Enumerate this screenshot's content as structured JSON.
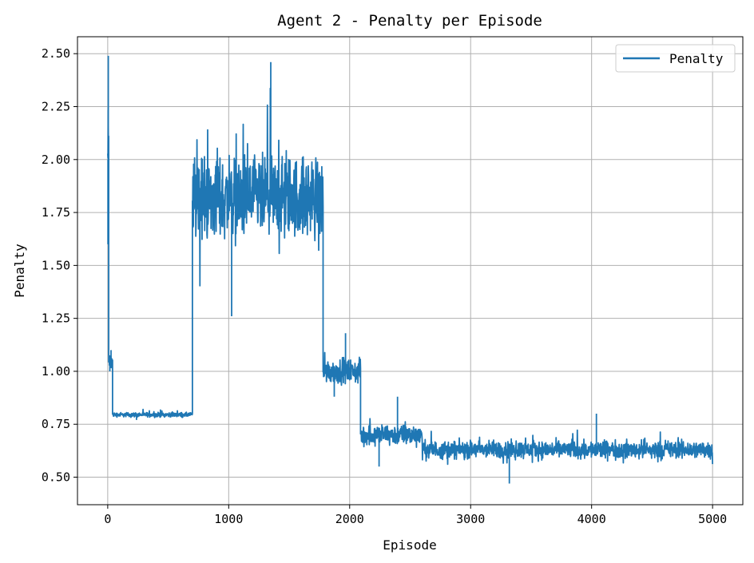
{
  "chart_data": {
    "type": "line",
    "title": "Agent 2 - Penalty per Episode",
    "xlabel": "Episode",
    "ylabel": "Penalty",
    "xlim": [
      -250,
      5250
    ],
    "ylim": [
      0.37,
      2.58
    ],
    "xticks": [
      0,
      1000,
      2000,
      3000,
      4000,
      5000
    ],
    "xtick_labels": [
      "0",
      "1000",
      "2000",
      "3000",
      "4000",
      "5000"
    ],
    "yticks": [
      0.5,
      0.75,
      1.0,
      1.25,
      1.5,
      1.75,
      2.0,
      2.25,
      2.5
    ],
    "ytick_labels": [
      "0.50",
      "0.75",
      "1.00",
      "1.25",
      "1.50",
      "1.75",
      "2.00",
      "2.25",
      "2.50"
    ],
    "grid": true,
    "legend_position": "top-right",
    "color": "#1f77b4",
    "series": [
      {
        "name": "Penalty",
        "segments": [
          {
            "x_start": 0,
            "x_end": 8,
            "mean": 2.0,
            "amp": 0.45,
            "min": 1.6,
            "max": 2.49
          },
          {
            "x_start": 8,
            "x_end": 40,
            "mean": 1.05,
            "amp": 0.05,
            "min": 1.0,
            "max": 1.1
          },
          {
            "x_start": 40,
            "x_end": 700,
            "mean": 0.795,
            "amp": 0.015,
            "min": 0.77,
            "max": 0.82
          },
          {
            "x_start": 700,
            "x_end": 1780,
            "mean": 1.82,
            "amp": 0.28,
            "min": 1.26,
            "max": 2.46
          },
          {
            "x_start": 1780,
            "x_end": 2090,
            "mean": 1.0,
            "amp": 0.08,
            "min": 0.88,
            "max": 1.18
          },
          {
            "x_start": 2090,
            "x_end": 2600,
            "mean": 0.7,
            "amp": 0.07,
            "min": 0.55,
            "max": 0.88
          },
          {
            "x_start": 2600,
            "x_end": 5000,
            "mean": 0.63,
            "amp": 0.06,
            "min": 0.47,
            "max": 0.8
          }
        ]
      }
    ]
  }
}
